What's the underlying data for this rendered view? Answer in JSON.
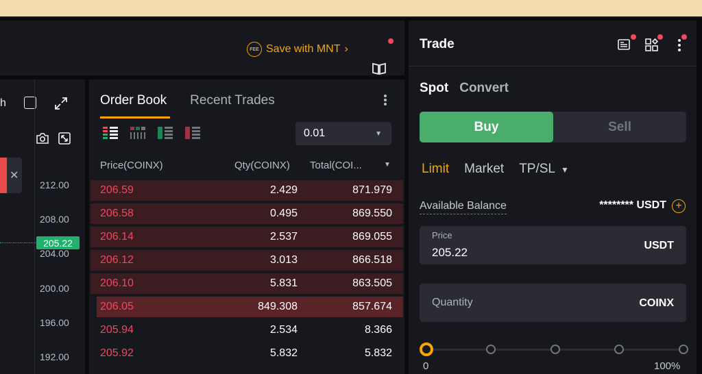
{
  "header": {
    "save_label": "Save with MNT",
    "fee_icon_text": "FEE"
  },
  "chart": {
    "toolbar_partial": "h",
    "ticks": [
      "212.00",
      "208.00",
      "204.00",
      "200.00",
      "196.00",
      "192.00"
    ],
    "current_price": "205.22"
  },
  "orderbook": {
    "tabs": [
      "Order Book",
      "Recent Trades"
    ],
    "precision": "0.01",
    "headers": {
      "price": "Price(COINX)",
      "qty": "Qty(COINX)",
      "total": "Total(COI..."
    },
    "rows": [
      {
        "price": "206.59",
        "qty": "2.429",
        "total": "871.979",
        "depth": 1.0
      },
      {
        "price": "206.58",
        "qty": "0.495",
        "total": "869.550",
        "depth": 1.0
      },
      {
        "price": "206.14",
        "qty": "2.537",
        "total": "869.055",
        "depth": 1.0
      },
      {
        "price": "206.12",
        "qty": "3.013",
        "total": "866.518",
        "depth": 1.0
      },
      {
        "price": "206.10",
        "qty": "5.831",
        "total": "863.505",
        "depth": 1.0
      },
      {
        "price": "206.05",
        "qty": "849.308",
        "total": "857.674",
        "depth": 0.98
      },
      {
        "price": "205.94",
        "qty": "2.534",
        "total": "8.366",
        "depth": 0
      },
      {
        "price": "205.92",
        "qty": "5.832",
        "total": "5.832",
        "depth": 0
      }
    ]
  },
  "trade": {
    "title": "Trade",
    "type_tabs": [
      "Spot",
      "Convert"
    ],
    "buy_label": "Buy",
    "sell_label": "Sell",
    "order_tabs": [
      "Limit",
      "Market",
      "TP/SL"
    ],
    "balance_label": "Available Balance",
    "balance_value": "******** USDT",
    "price_field": {
      "label": "Price",
      "value": "205.22",
      "unit": "USDT"
    },
    "quantity_field": {
      "placeholder": "Quantity",
      "unit": "COINX"
    },
    "slider": {
      "value_percent": 0,
      "min_label": "0",
      "max_label": "100%"
    }
  },
  "colors": {
    "accent": "#f7a600",
    "buy": "#4aad6c",
    "sell_text": "#f6465d",
    "panel": "#17181e"
  }
}
